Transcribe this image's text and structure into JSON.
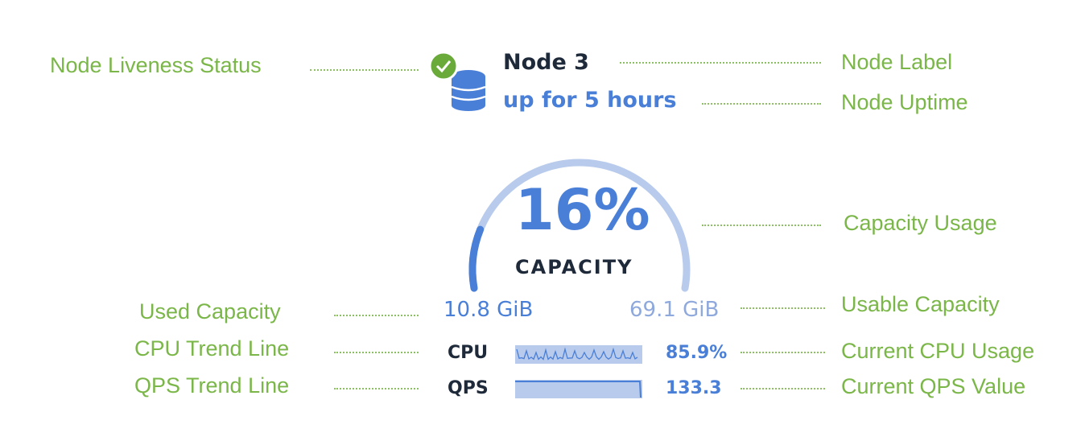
{
  "node": {
    "label": "Node 3",
    "uptime": "up for 5 hours",
    "liveness": "live",
    "icon": "database-icon"
  },
  "capacity": {
    "percent_label": "16%",
    "percent": 16,
    "caption": "CAPACITY",
    "used": "10.8 GiB",
    "usable": "69.1 GiB"
  },
  "metrics": {
    "cpu": {
      "label": "CPU",
      "value": "85.9%"
    },
    "qps": {
      "label": "QPS",
      "value": "133.3"
    }
  },
  "annotations": {
    "liveness": "Node Liveness Status",
    "label": "Node Label",
    "uptime": "Node Uptime",
    "capacity": "Capacity Usage",
    "used": "Used Capacity",
    "usable": "Usable Capacity",
    "cpu_trend": "CPU Trend Line",
    "cpu_current": "Current CPU Usage",
    "qps_trend": "QPS Trend Line",
    "qps_current": "Current QPS Value"
  },
  "colors": {
    "accent": "#4a7fd8",
    "track": "#b8cbec",
    "annotation": "#7ab648",
    "live": "#6aaa3a"
  }
}
